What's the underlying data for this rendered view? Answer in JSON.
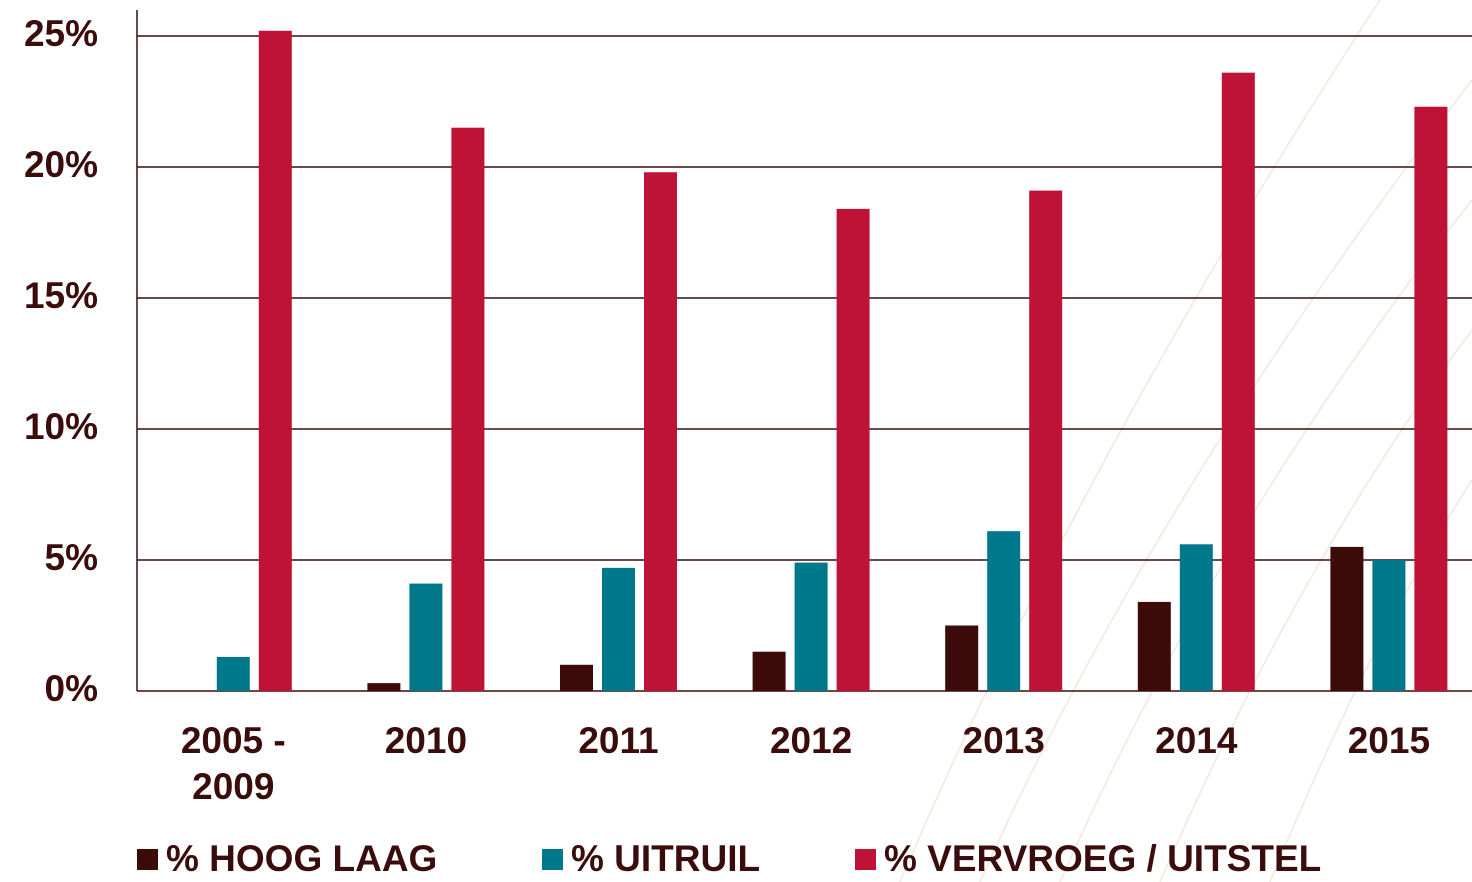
{
  "chart_data": {
    "type": "bar",
    "categories": [
      "2005 - 2009",
      "2010",
      "2011",
      "2012",
      "2013",
      "2014",
      "2015"
    ],
    "series": [
      {
        "name": "% HOOG LAAG",
        "color": "#3d0a0a",
        "values": [
          0,
          0.3,
          1.0,
          1.5,
          2.5,
          3.4,
          5.5
        ]
      },
      {
        "name": "% UITRUIL",
        "color": "#00788c",
        "values": [
          1.3,
          4.1,
          4.7,
          4.9,
          6.1,
          5.6,
          5.0
        ]
      },
      {
        "name": "% VERVROEG / UITSTEL",
        "color": "#be1237",
        "values": [
          25.2,
          21.5,
          19.8,
          18.4,
          19.1,
          23.6,
          22.3
        ]
      }
    ],
    "ylim": [
      0,
      25
    ],
    "yticks": [
      {
        "value": 0,
        "label": "0%"
      },
      {
        "value": 5,
        "label": "5%"
      },
      {
        "value": 10,
        "label": "10%"
      },
      {
        "value": 15,
        "label": "15%"
      },
      {
        "value": 20,
        "label": "20%"
      },
      {
        "value": 25,
        "label": "25%"
      }
    ],
    "grid": true
  }
}
